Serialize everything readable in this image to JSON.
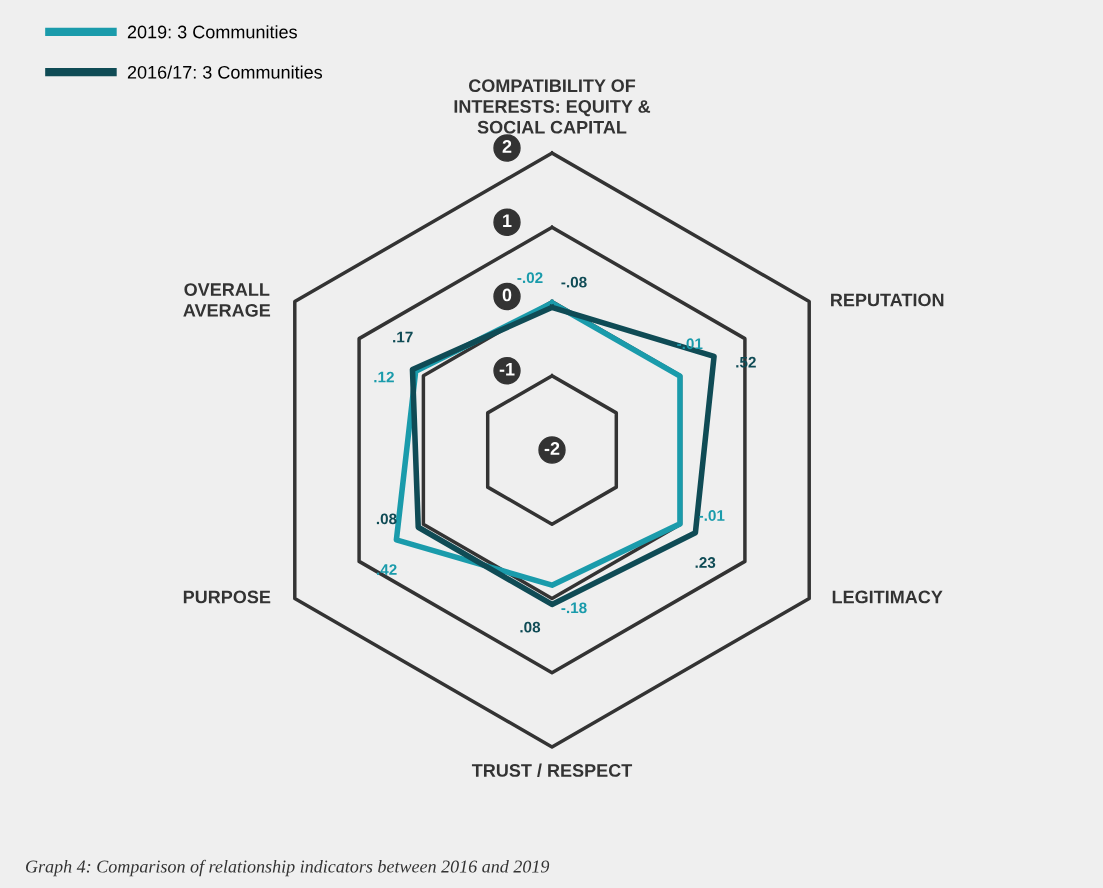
{
  "chart_data": {
    "type": "radar",
    "title": null,
    "categories": [
      "COMPATIBILITY OF\nINTERESTS: EQUITY &\nSOCIAL CAPITAL",
      "REPUTATION",
      "LEGITIMACY",
      "TRUST / RESPECT",
      "PURPOSE",
      "OVERALL\nAVERAGE"
    ],
    "ylim": [
      -2,
      2
    ],
    "yticks": [
      -2,
      -1,
      0,
      1,
      2
    ],
    "legend": "top left",
    "series": [
      {
        "name": "2019: 3 Communities",
        "color": "#1a9bab",
        "values": [
          -0.02,
          -0.01,
          -0.01,
          -0.18,
          0.42,
          0.12
        ],
        "value_labels": [
          "-.02",
          "-.01",
          "-.01",
          "-.18",
          ".42",
          ".12"
        ]
      },
      {
        "name": "2016/17: 3 Communities",
        "color": "#0f4b55",
        "values": [
          -0.08,
          0.52,
          0.23,
          0.08,
          0.08,
          0.17
        ],
        "value_labels": [
          "-.08",
          ".52",
          ".23",
          ".08",
          ".08",
          ".17"
        ]
      }
    ],
    "annotations": [
      "Graph 4: Comparison of relationship indicators between 2016 and 2019"
    ]
  }
}
